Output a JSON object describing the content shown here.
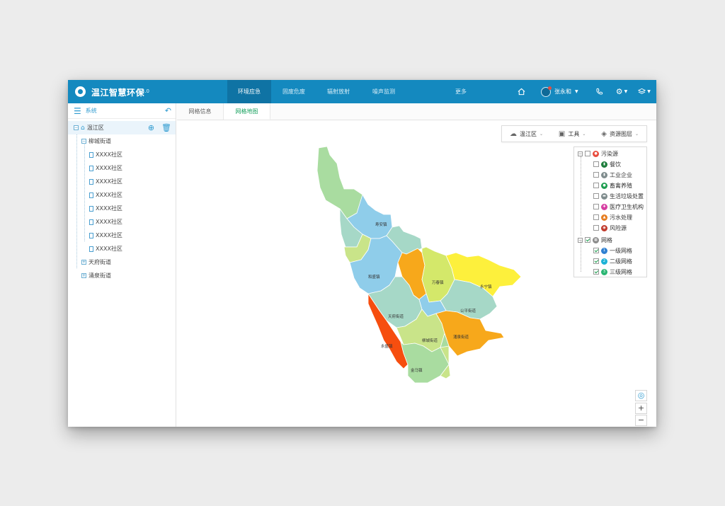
{
  "header": {
    "app_title": "温江智慧环保",
    "version": "V3.0",
    "nav": [
      "环境应急",
      "固废危废",
      "辐射放射",
      "噪声监测",
      "更多"
    ],
    "active_nav": 0,
    "user_name": "张永和"
  },
  "sidebar": {
    "title": "系统",
    "tree": {
      "root": "温江区",
      "street": "柳城街道",
      "communities": [
        "XXXX社区",
        "XXXX社区",
        "XXXX社区",
        "XXXX社区",
        "XXXX社区",
        "XXXX社区",
        "XXXX社区",
        "XXXX社区"
      ],
      "other_streets": [
        "天府街道",
        "涌泉街道"
      ]
    }
  },
  "tabs": [
    "网格信息",
    "网格地图"
  ],
  "active_tab": 1,
  "toolbar": {
    "district": "温江区",
    "tools": "工具",
    "layers": "资源图层"
  },
  "legend": {
    "pollution_group": "污染源",
    "pollution_items": [
      {
        "label": "餐饮",
        "color": "#1e7d3c"
      },
      {
        "label": "工业企业",
        "color": "#7f8c8d"
      },
      {
        "label": "畜禽养殖",
        "color": "#1e9e50"
      },
      {
        "label": "生活垃圾处置",
        "color": "#7f8c8d"
      },
      {
        "label": "医疗卫生机构",
        "color": "#d63ea2"
      },
      {
        "label": "污水处理",
        "color": "#e67e22"
      },
      {
        "label": "风险源",
        "color": "#c0392b"
      }
    ],
    "grid_group": "网格",
    "grid_items": [
      {
        "label": "一级网格",
        "color": "#2f80d1",
        "num": "1"
      },
      {
        "label": "二级网格",
        "color": "#1db2d6",
        "num": "2"
      },
      {
        "label": "三级网格",
        "color": "#2bb673",
        "num": "3"
      }
    ]
  },
  "map": {
    "region_labels": [
      "寿安镇",
      "和盛镇",
      "万春镇",
      "永宁镇",
      "公平街道",
      "天府街道",
      "柳城街道",
      "涌泉街道",
      "金马镇",
      "永盛镇"
    ]
  }
}
